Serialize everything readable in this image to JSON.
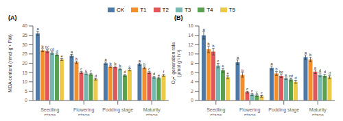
{
  "chart_data": [
    {
      "type": "bar",
      "title": "(A)",
      "y_label": "MDA content (nmol g⁻¹ FW)",
      "categories": [
        "Seedling\nstage",
        "Flowering\nstage",
        "Podding stage",
        "Maturity\nstage"
      ],
      "ylim": [
        0,
        40
      ],
      "yticks": [
        0,
        5,
        10,
        15,
        20,
        25,
        30,
        35,
        40
      ],
      "series": [
        {
          "name": "CK",
          "color": "#4e79a7",
          "values": [
            36.0,
            24.0,
            20.0,
            19.5
          ],
          "errors": [
            1.2,
            0.8,
            0.6,
            0.6
          ],
          "letters": [
            "a",
            "a",
            "a",
            "a"
          ]
        },
        {
          "name": "T1",
          "color": "#f28e2b",
          "values": [
            27.0,
            20.5,
            18.2,
            17.5
          ],
          "errors": [
            0.8,
            0.7,
            0.5,
            0.5
          ],
          "letters": [
            "b",
            "b",
            "b",
            "b"
          ]
        },
        {
          "name": "T2",
          "color": "#e15759",
          "values": [
            26.5,
            15.0,
            18.0,
            15.0
          ],
          "errors": [
            0.7,
            0.5,
            0.5,
            0.5
          ],
          "letters": [
            "bc",
            "c",
            "b",
            "c"
          ]
        },
        {
          "name": "T3",
          "color": "#76b7b2",
          "values": [
            25.5,
            14.5,
            17.0,
            12.5
          ],
          "errors": [
            0.6,
            0.5,
            0.5,
            0.5
          ],
          "letters": [
            "cd",
            "c",
            "b",
            "d"
          ]
        },
        {
          "name": "T4",
          "color": "#59a14f",
          "values": [
            24.5,
            14.0,
            13.5,
            12.0
          ],
          "errors": [
            0.5,
            0.4,
            0.5,
            0.4
          ],
          "letters": [
            "d",
            "c",
            "d",
            "e"
          ]
        },
        {
          "name": "T5",
          "color": "#edc948",
          "values": [
            22.0,
            11.5,
            16.5,
            13.5
          ],
          "errors": [
            0.5,
            0.5,
            0.6,
            0.5
          ],
          "letters": [
            "e",
            "d",
            "c",
            "f"
          ]
        }
      ]
    },
    {
      "type": "bar",
      "title": "(B)",
      "y_label": "O₂•⁻ generation rate\n(μmol g⁻¹ h⁻¹)",
      "categories": [
        "Seedling\nstage",
        "Flowering\nstage",
        "Podding stage",
        "Maturity\nstage"
      ],
      "ylim": [
        0,
        16
      ],
      "yticks": [
        0,
        2,
        4,
        6,
        8,
        10,
        12,
        14,
        16
      ],
      "series": [
        {
          "name": "CK",
          "color": "#4e79a7",
          "values": [
            14.0,
            8.2,
            7.0,
            9.3
          ],
          "errors": [
            0.8,
            0.5,
            0.4,
            0.5
          ],
          "letters": [
            "a",
            "a",
            "a",
            "a"
          ]
        },
        {
          "name": "T1",
          "color": "#f28e2b",
          "values": [
            11.0,
            5.5,
            5.8,
            8.8
          ],
          "errors": [
            0.7,
            0.5,
            0.4,
            0.5
          ],
          "letters": [
            "b",
            "b",
            "b",
            "b"
          ]
        },
        {
          "name": "T2",
          "color": "#e15759",
          "values": [
            10.5,
            1.8,
            5.3,
            6.2
          ],
          "errors": [
            0.7,
            0.2,
            0.4,
            0.4
          ],
          "letters": [
            "b",
            "c",
            "bc",
            "c"
          ]
        },
        {
          "name": "T3",
          "color": "#76b7b2",
          "values": [
            7.5,
            1.3,
            4.8,
            5.5
          ],
          "errors": [
            0.5,
            0.2,
            0.3,
            0.4
          ],
          "letters": [
            "c",
            "c",
            "c",
            "d"
          ]
        },
        {
          "name": "T4",
          "color": "#59a14f",
          "values": [
            6.5,
            1.1,
            4.5,
            5.3
          ],
          "errors": [
            0.4,
            0.2,
            0.3,
            0.3
          ],
          "letters": [
            "c",
            "c",
            "cd",
            "d"
          ]
        },
        {
          "name": "T5",
          "color": "#edc948",
          "values": [
            5.0,
            0.9,
            4.0,
            5.0
          ],
          "errors": [
            0.3,
            0.2,
            0.3,
            0.3
          ],
          "letters": [
            "e",
            "c",
            "d",
            "d"
          ]
        }
      ]
    }
  ]
}
